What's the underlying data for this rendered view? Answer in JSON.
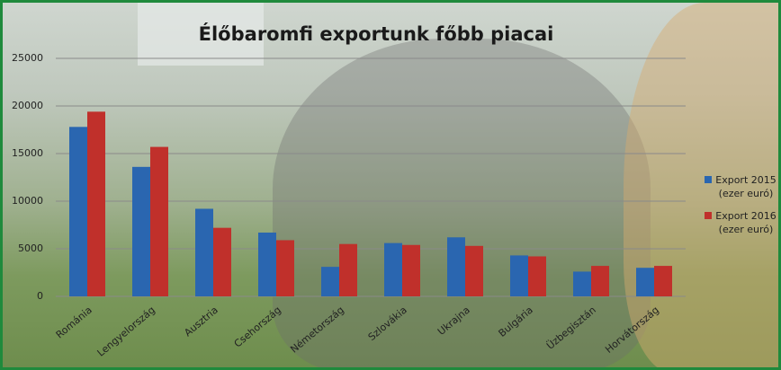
{
  "chart_data": {
    "type": "bar",
    "title": "Élőbaromfi exportunk főbb piacai",
    "categories": [
      "Románia",
      "Lengyelország",
      "Ausztria",
      "Csehország",
      "Németország",
      "Szlovákia",
      "Ukrajna",
      "Bulgária",
      "Üzbegisztán",
      "Horvátország"
    ],
    "series": [
      {
        "name": "Export 2015 (ezer euró)",
        "color": "#2a66b0",
        "values": [
          17800,
          13600,
          9200,
          6700,
          3100,
          5600,
          6200,
          4300,
          2600,
          3000
        ]
      },
      {
        "name": "Export 2016 (ezer euró)",
        "color": "#c0302b",
        "values": [
          19400,
          15700,
          7200,
          5900,
          5500,
          5400,
          5300,
          4200,
          3200,
          3200
        ]
      }
    ],
    "ylim": [
      0,
      25000
    ],
    "yticks": [
      0,
      5000,
      10000,
      15000,
      20000,
      25000
    ],
    "grid": true,
    "legend": "right"
  }
}
